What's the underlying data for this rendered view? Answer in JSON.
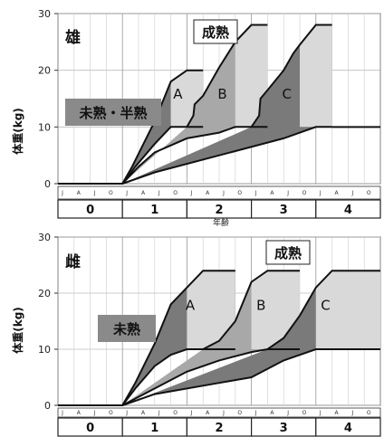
{
  "chart_data": [
    {
      "type": "area",
      "panel": "male",
      "sex_label": "雄",
      "ylabel": "体重(kg)",
      "xlabel": "年齢",
      "ylim": [
        0,
        30
      ],
      "yticks": [
        0,
        10,
        20,
        30
      ],
      "xlim": [
        -0.5,
        4.5
      ],
      "age_labels": [
        "0",
        "1",
        "2",
        "3",
        "4"
      ],
      "month_labels": [
        "J",
        "A",
        "J",
        "O"
      ],
      "label_mature": "成熟",
      "label_immature": "未熟・半熟",
      "series": [
        {
          "name": "A",
          "upper": [
            [
              -0.5,
              0
            ],
            [
              0.5,
              0
            ],
            [
              0.65,
              3
            ],
            [
              1.0,
              11
            ],
            [
              1.25,
              18
            ],
            [
              1.5,
              20
            ],
            [
              1.75,
              20
            ]
          ],
          "lower": [
            [
              -0.5,
              0
            ],
            [
              0.5,
              0
            ],
            [
              0.7,
              3
            ],
            [
              1.0,
              7
            ],
            [
              1.25,
              10
            ],
            [
              1.5,
              10
            ],
            [
              1.75,
              10
            ]
          ]
        },
        {
          "name": "B",
          "upper": [
            [
              1.5,
              10
            ],
            [
              1.6,
              12
            ],
            [
              1.62,
              14
            ],
            [
              1.75,
              15.5
            ],
            [
              2.0,
              20.5
            ],
            [
              2.25,
              25
            ],
            [
              2.5,
              28
            ],
            [
              2.75,
              28
            ]
          ],
          "lower": [
            [
              0.5,
              0
            ],
            [
              0.75,
              3
            ],
            [
              1.0,
              5.5
            ],
            [
              1.5,
              8
            ],
            [
              2.0,
              9
            ],
            [
              2.25,
              10
            ],
            [
              2.5,
              10
            ],
            [
              2.75,
              10
            ]
          ]
        },
        {
          "name": "C",
          "upper": [
            [
              2.5,
              10
            ],
            [
              2.62,
              12
            ],
            [
              2.64,
              15
            ],
            [
              2.75,
              16.5
            ],
            [
              3.0,
              20
            ],
            [
              3.15,
              23
            ],
            [
              3.25,
              24.5
            ],
            [
              3.5,
              28
            ],
            [
              3.75,
              28
            ]
          ],
          "lower": [
            [
              0.5,
              0
            ],
            [
              1.0,
              2
            ],
            [
              2.0,
              5
            ],
            [
              3.0,
              8
            ],
            [
              3.5,
              10
            ],
            [
              3.75,
              10
            ]
          ]
        }
      ],
      "colors": {
        "dark": "#7a7a7a",
        "mid": "#a8a8a8",
        "light": "#d9d9d9",
        "line": "#111111"
      }
    },
    {
      "type": "area",
      "panel": "female",
      "sex_label": "雌",
      "ylabel": "体重(kg)",
      "ylim": [
        0,
        30
      ],
      "yticks": [
        0,
        10,
        20,
        30
      ],
      "xlim": [
        -0.5,
        4.5
      ],
      "age_labels": [
        "0",
        "1",
        "2",
        "3",
        "4"
      ],
      "month_labels": [
        "J",
        "A",
        "J",
        "O"
      ],
      "label_mature": "成熟",
      "label_immature": "未熟",
      "series": [
        {
          "name": "A",
          "upper": [
            [
              -0.5,
              0
            ],
            [
              0.5,
              0
            ],
            [
              0.7,
              4
            ],
            [
              1.0,
              11
            ],
            [
              1.25,
              18
            ],
            [
              1.5,
              21
            ],
            [
              1.75,
              24
            ],
            [
              2.25,
              24
            ]
          ],
          "lower": [
            [
              -0.5,
              0
            ],
            [
              0.5,
              0
            ],
            [
              0.7,
              3
            ],
            [
              1.0,
              7
            ],
            [
              1.25,
              9
            ],
            [
              1.5,
              10
            ],
            [
              1.75,
              10
            ],
            [
              2.25,
              10
            ]
          ]
        },
        {
          "name": "B",
          "upper": [
            [
              1.75,
              10
            ],
            [
              2.0,
              11.5
            ],
            [
              2.25,
              15
            ],
            [
              2.5,
              22
            ],
            [
              2.75,
              24
            ],
            [
              3.25,
              24
            ]
          ],
          "lower": [
            [
              0.5,
              0
            ],
            [
              1.0,
              3
            ],
            [
              1.5,
              6
            ],
            [
              2.0,
              8
            ],
            [
              2.5,
              9.5
            ],
            [
              2.75,
              10
            ],
            [
              3.25,
              10
            ]
          ]
        },
        {
          "name": "C",
          "upper": [
            [
              2.75,
              10
            ],
            [
              3.0,
              12
            ],
            [
              3.25,
              16
            ],
            [
              3.5,
              21
            ],
            [
              3.75,
              24
            ],
            [
              4.5,
              24
            ]
          ],
          "lower": [
            [
              0.5,
              0
            ],
            [
              1.0,
              2
            ],
            [
              2.0,
              4
            ],
            [
              2.5,
              5
            ],
            [
              3.0,
              8
            ],
            [
              3.5,
              10
            ],
            [
              4.5,
              10
            ]
          ]
        }
      ],
      "colors": {
        "dark": "#7a7a7a",
        "mid": "#a8a8a8",
        "light": "#d9d9d9",
        "line": "#111111"
      }
    }
  ]
}
